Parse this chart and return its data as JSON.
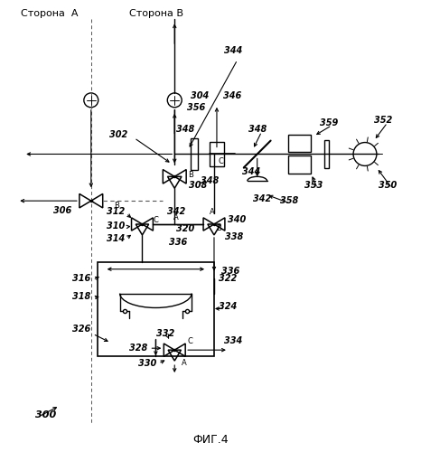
{
  "title": "ФИГ.4",
  "bg_color": "#ffffff",
  "text_color": "#000000",
  "line_color": "#000000",
  "labels": {
    "side_a": "Сторона  А",
    "side_b": "Сторона В",
    "ref300": "300",
    "ref302": "302",
    "ref304": "304",
    "ref306": "306",
    "ref308": "308",
    "ref310": "310",
    "ref312": "312",
    "ref314": "314",
    "ref316": "316",
    "ref318": "318",
    "ref320": "320",
    "ref322": "322",
    "ref324": "324",
    "ref326": "326",
    "ref328": "328",
    "ref330": "330",
    "ref332": "332",
    "ref334": "334",
    "ref336": "336",
    "ref338": "338",
    "ref340": "340",
    "ref342": "342",
    "ref344": "344",
    "ref346": "346",
    "ref348": "348",
    "ref350": "350",
    "ref352": "352",
    "ref353": "353",
    "ref356": "356",
    "ref358": "358",
    "ref359": "359"
  },
  "fs_title": 9,
  "fs_ref": 7,
  "fs_side": 8,
  "fs_port": 6
}
